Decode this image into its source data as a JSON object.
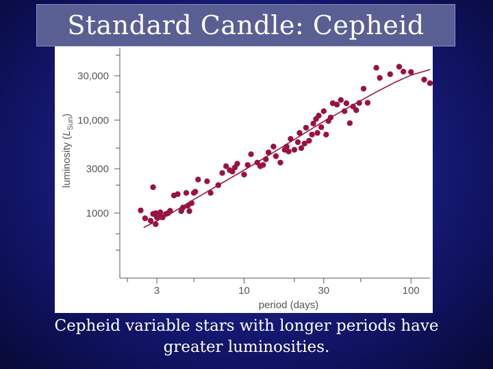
{
  "slide": {
    "title": "Standard Candle: Cepheid",
    "caption": "Cepheid variable stars with longer periods have greater luminosities."
  },
  "colors": {
    "point": "#9a1240",
    "line": "#9a1240",
    "axis": "#555555"
  },
  "chart_data": {
    "type": "scatter",
    "xlabel": "period (days)",
    "ylabel_main": "luminosity (",
    "ylabel_var": "L",
    "ylabel_sub": "Sun",
    "ylabel_end": ")",
    "xscale": "log",
    "yscale": "log",
    "xlim": [
      1.8,
      130
    ],
    "ylim": [
      200,
      60000
    ],
    "x_ticks": [
      {
        "value": 3,
        "label": "3"
      },
      {
        "value": 10,
        "label": "10"
      },
      {
        "value": 30,
        "label": "30"
      },
      {
        "value": 100,
        "label": "100"
      }
    ],
    "y_ticks": [
      {
        "value": 1000,
        "label": "1000"
      },
      {
        "value": 3000,
        "label": "3000"
      },
      {
        "value": 10000,
        "label": "10,000"
      },
      {
        "value": 30000,
        "label": "30,000"
      }
    ],
    "grid": false,
    "trend": {
      "x": [
        2.5,
        3.5,
        5,
        7,
        10,
        15,
        20,
        30,
        40,
        60,
        80,
        100,
        130
      ],
      "y": [
        700,
        950,
        1400,
        2000,
        2900,
        4500,
        6200,
        9700,
        13000,
        19500,
        25500,
        30500,
        35000
      ]
    },
    "points": [
      [
        2.4,
        1070
      ],
      [
        2.55,
        880
      ],
      [
        2.75,
        830
      ],
      [
        2.85,
        1900
      ],
      [
        2.85,
        980
      ],
      [
        2.95,
        760
      ],
      [
        3.0,
        900
      ],
      [
        3.05,
        980
      ],
      [
        3.1,
        940
      ],
      [
        3.15,
        1020
      ],
      [
        3.25,
        900
      ],
      [
        3.4,
        980
      ],
      [
        3.5,
        1000
      ],
      [
        3.6,
        1060
      ],
      [
        2.95,
        1000
      ],
      [
        3.8,
        1550
      ],
      [
        4.0,
        1600
      ],
      [
        4.2,
        1050
      ],
      [
        4.3,
        1150
      ],
      [
        4.5,
        1650
      ],
      [
        4.6,
        1200
      ],
      [
        4.7,
        1050
      ],
      [
        4.85,
        1280
      ],
      [
        5.0,
        1650
      ],
      [
        5.1,
        1700
      ],
      [
        5.3,
        2300
      ],
      [
        6.0,
        2200
      ],
      [
        6.3,
        1650
      ],
      [
        7.0,
        2000
      ],
      [
        7.4,
        2700
      ],
      [
        7.8,
        3200
      ],
      [
        8.2,
        2900
      ],
      [
        8.5,
        2800
      ],
      [
        8.8,
        3100
      ],
      [
        9.1,
        3400
      ],
      [
        10.0,
        2600
      ],
      [
        10.5,
        3300
      ],
      [
        11.0,
        4300
      ],
      [
        12.0,
        3500
      ],
      [
        12.5,
        3200
      ],
      [
        13.0,
        3300
      ],
      [
        13.5,
        3800
      ],
      [
        14.0,
        4500
      ],
      [
        15.0,
        5200
      ],
      [
        15.5,
        4100
      ],
      [
        16.5,
        3500
      ],
      [
        17.5,
        4800
      ],
      [
        18.0,
        5200
      ],
      [
        18.5,
        4600
      ],
      [
        19.0,
        6300
      ],
      [
        20.0,
        4800
      ],
      [
        21.0,
        5800
      ],
      [
        21.5,
        7300
      ],
      [
        22.0,
        5000
      ],
      [
        23.0,
        5600
      ],
      [
        23.5,
        8300
      ],
      [
        24.5,
        6000
      ],
      [
        25.5,
        7000
      ],
      [
        26.0,
        9200
      ],
      [
        27.0,
        10300
      ],
      [
        27.5,
        7300
      ],
      [
        28.0,
        11200
      ],
      [
        29.0,
        8400
      ],
      [
        30.0,
        12500
      ],
      [
        31.0,
        7000
      ],
      [
        32.0,
        9800
      ],
      [
        33.0,
        10700
      ],
      [
        34.0,
        15200
      ],
      [
        36.0,
        14700
      ],
      [
        38.0,
        16500
      ],
      [
        40.0,
        12500
      ],
      [
        41.0,
        15200
      ],
      [
        43.0,
        9300
      ],
      [
        45.0,
        14000
      ],
      [
        47.0,
        12800
      ],
      [
        49.0,
        15300
      ],
      [
        52.0,
        21800
      ],
      [
        55.0,
        15400
      ],
      [
        62.0,
        36600
      ],
      [
        65.0,
        28500
      ],
      [
        75.0,
        31200
      ],
      [
        85.0,
        37600
      ],
      [
        90.0,
        33300
      ],
      [
        100.0,
        33000
      ],
      [
        120.0,
        27300
      ],
      [
        130.0,
        25000
      ]
    ]
  }
}
